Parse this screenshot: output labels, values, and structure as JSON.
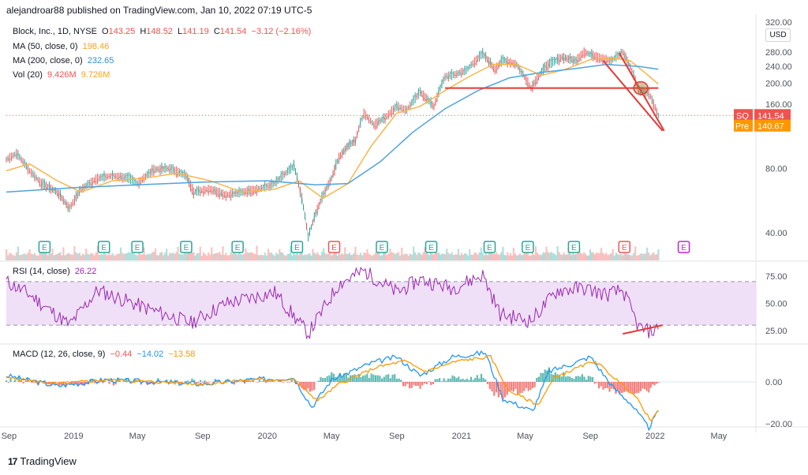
{
  "header": {
    "published": "alejandroar88 published on TradingView.com, Jan 10, 2022 07:19 UTC-5"
  },
  "price_axis_unit": "USD",
  "legend_price": {
    "name": "Block, Inc., 1D, NYSE",
    "o_label": "O",
    "o": "143.25",
    "h_label": "H",
    "h": "148.52",
    "l_label": "L",
    "l": "141.19",
    "c_label": "C",
    "c": "141.54",
    "chg": "−3.12 (−2.16%)"
  },
  "legend_ma50": {
    "name": "MA (50, close, 0)",
    "value": "198.46"
  },
  "legend_ma200": {
    "name": "MA (200, close, 0)",
    "value": "232.65"
  },
  "legend_vol": {
    "name": "Vol (20)",
    "v1": "9.426M",
    "v2": "9.726M"
  },
  "legend_rsi": {
    "name": "RSI (14, close)",
    "value": "26.22"
  },
  "legend_macd": {
    "name": "MACD (12, 26, close, 9)",
    "v1": "−0.44",
    "v2": "−14.02",
    "v3": "−13.58"
  },
  "badges": {
    "ticker": "SQ",
    "last": "141.54",
    "pre_label": "Pre",
    "pre": "140.67"
  },
  "footer": {
    "brand": "TradingView"
  },
  "colors": {
    "up": "#26a69a",
    "down": "#ef5350",
    "ma50": "#f7b54b",
    "ma200": "#4ea3e0",
    "rsi": "#9c27b0",
    "rsi_band": "#e9d5f5",
    "macd": "#2196f3",
    "signal": "#ff9800",
    "drawing": "#e53935",
    "pre": "#ff9800"
  },
  "chart_data": [
    {
      "type": "line",
      "title": "Block, Inc., 1D, NYSE",
      "y_scale": "log",
      "y_ticks": [
        "40.00",
        "80.00",
        "160.00",
        "200.00",
        "240.00",
        "280.00",
        "320.00"
      ],
      "x_ticks": [
        "Sep",
        "2019",
        "May",
        "Sep",
        "2020",
        "May",
        "Sep",
        "2021",
        "May",
        "Sep",
        "2022",
        "May"
      ],
      "x_tick_dates": [
        "2018-09-01",
        "2019-01-01",
        "2019-05-01",
        "2019-09-01",
        "2020-01-01",
        "2020-05-01",
        "2020-09-01",
        "2021-01-01",
        "2021-05-01",
        "2021-09-01",
        "2022-01-01",
        "2022-05-01"
      ],
      "x_range": [
        "2018-08-27",
        "2022-07-10"
      ],
      "series": [
        {
          "name": "Price",
          "x": [
            "2018-08-27",
            "2018-09-15",
            "2018-10-10",
            "2018-11-01",
            "2018-12-01",
            "2018-12-24",
            "2019-01-15",
            "2019-02-15",
            "2019-03-15",
            "2019-04-15",
            "2019-05-01",
            "2019-06-01",
            "2019-07-01",
            "2019-08-01",
            "2019-08-15",
            "2019-09-15",
            "2019-10-15",
            "2019-11-15",
            "2019-12-15",
            "2020-01-15",
            "2020-02-20",
            "2020-03-18",
            "2020-04-10",
            "2020-05-01",
            "2020-05-15",
            "2020-06-01",
            "2020-06-15",
            "2020-07-01",
            "2020-07-20",
            "2020-08-10",
            "2020-09-01",
            "2020-09-20",
            "2020-10-15",
            "2020-11-10",
            "2020-12-01",
            "2020-12-20",
            "2021-01-10",
            "2021-02-10",
            "2021-03-05",
            "2021-03-20",
            "2021-04-15",
            "2021-05-12",
            "2021-06-10",
            "2021-07-10",
            "2021-08-05",
            "2021-08-20",
            "2021-09-15",
            "2021-10-10",
            "2021-11-01",
            "2021-11-15",
            "2021-12-01",
            "2021-12-20",
            "2022-01-07"
          ],
          "y": [
            88,
            94,
            78,
            68,
            62,
            52,
            64,
            72,
            74,
            72,
            68,
            79,
            80,
            74,
            62,
            64,
            60,
            62,
            64,
            68,
            82,
            38,
            56,
            72,
            90,
            102,
            108,
            145,
            128,
            138,
            156,
            150,
            182,
            156,
            215,
            220,
            230,
            275,
            232,
            258,
            245,
            190,
            242,
            265,
            255,
            280,
            265,
            255,
            280,
            240,
            185,
            180,
            141.54
          ]
        },
        {
          "name": "MA (50, close, 0)",
          "x": [
            "2018-08-27",
            "2018-10-10",
            "2018-12-01",
            "2019-01-15",
            "2019-03-15",
            "2019-05-15",
            "2019-07-15",
            "2019-09-15",
            "2019-11-15",
            "2020-01-15",
            "2020-03-01",
            "2020-04-15",
            "2020-06-01",
            "2020-07-15",
            "2020-09-01",
            "2020-10-15",
            "2020-12-01",
            "2021-01-15",
            "2021-03-01",
            "2021-04-15",
            "2021-06-01",
            "2021-07-15",
            "2021-09-01",
            "2021-10-15",
            "2021-11-15",
            "2021-12-15",
            "2022-01-07"
          ],
          "y": [
            78,
            84,
            70,
            62,
            70,
            72,
            76,
            70,
            62,
            64,
            70,
            58,
            68,
            102,
            145,
            156,
            185,
            215,
            245,
            245,
            218,
            232,
            258,
            262,
            255,
            222,
            198.46
          ]
        },
        {
          "name": "MA (200, close, 0)",
          "x": [
            "2018-08-27",
            "2019-01-01",
            "2019-05-01",
            "2019-09-01",
            "2020-01-01",
            "2020-04-01",
            "2020-06-01",
            "2020-08-01",
            "2020-10-01",
            "2020-12-01",
            "2021-02-01",
            "2021-04-01",
            "2021-06-01",
            "2021-08-01",
            "2021-10-01",
            "2021-12-01",
            "2022-01-07"
          ],
          "y": [
            62,
            65,
            67,
            69,
            70,
            67,
            68,
            86,
            118,
            152,
            185,
            212,
            225,
            234,
            245,
            240,
            232.65
          ]
        }
      ],
      "earnings_markers": [
        "E",
        "E",
        "E",
        "E",
        "E",
        "E",
        "E",
        "E",
        "E",
        "E",
        "E",
        "E",
        "E",
        "E"
      ]
    },
    {
      "type": "line",
      "title": "RSI (14, close)",
      "y_ticks": [
        "25.00",
        "50.00",
        "75.00"
      ],
      "band": [
        30,
        70
      ],
      "x": [
        "2018-08-27",
        "2018-10-10",
        "2018-12-24",
        "2019-02-15",
        "2019-05-15",
        "2019-08-10",
        "2019-10-15",
        "2020-01-15",
        "2020-03-18",
        "2020-05-15",
        "2020-07-01",
        "2020-09-01",
        "2020-10-15",
        "2020-12-15",
        "2021-02-10",
        "2021-03-15",
        "2021-05-12",
        "2021-07-01",
        "2021-08-20",
        "2021-10-01",
        "2021-11-01",
        "2021-12-01",
        "2021-12-20",
        "2022-01-07"
      ],
      "y": [
        70,
        58,
        30,
        62,
        46,
        32,
        50,
        60,
        22,
        68,
        80,
        60,
        72,
        64,
        76,
        40,
        34,
        62,
        64,
        58,
        62,
        28,
        24,
        26.22
      ]
    },
    {
      "type": "line",
      "title": "MACD (12, 26, close, 9)",
      "y_ticks": [
        "−20.00",
        "0.00"
      ],
      "series": [
        {
          "name": "MACD",
          "x": [
            "2018-08-27",
            "2018-12-01",
            "2019-03-01",
            "2019-06-01",
            "2019-09-01",
            "2019-12-01",
            "2020-02-20",
            "2020-03-25",
            "2020-05-01",
            "2020-07-15",
            "2020-09-01",
            "2020-10-15",
            "2020-12-15",
            "2021-02-15",
            "2021-03-20",
            "2021-05-15",
            "2021-06-15",
            "2021-08-01",
            "2021-09-01",
            "2021-10-15",
            "2021-11-15",
            "2021-12-20",
            "2022-01-07"
          ],
          "y": [
            3,
            -2,
            1,
            0,
            -1,
            1,
            2,
            -12,
            1,
            9,
            12,
            3,
            12,
            14,
            -8,
            -14,
            5,
            9,
            12,
            -3,
            -10,
            -22,
            -14.02
          ]
        },
        {
          "name": "Signal",
          "x": [
            "2018-08-27",
            "2018-12-01",
            "2019-03-01",
            "2019-06-01",
            "2019-09-01",
            "2019-12-01",
            "2020-02-20",
            "2020-04-05",
            "2020-05-15",
            "2020-07-25",
            "2020-09-15",
            "2020-10-25",
            "2020-12-25",
            "2021-02-25",
            "2021-03-30",
            "2021-05-25",
            "2021-06-25",
            "2021-08-10",
            "2021-09-10",
            "2021-10-25",
            "2021-11-25",
            "2021-12-25",
            "2022-01-07"
          ],
          "y": [
            2,
            -1,
            1,
            0,
            -1,
            1,
            1,
            -9,
            -1,
            7,
            10,
            5,
            10,
            12,
            -4,
            -11,
            2,
            7,
            10,
            0,
            -7,
            -19,
            -13.58
          ]
        }
      ]
    }
  ]
}
